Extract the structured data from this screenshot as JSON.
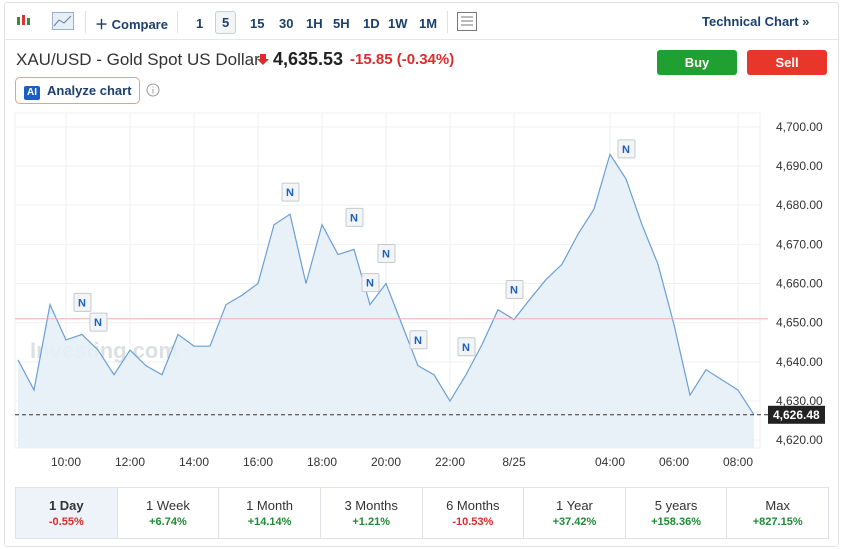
{
  "toolbar": {
    "compare": "Compare",
    "intervals": [
      "1",
      "5",
      "15",
      "30",
      "1H",
      "5H",
      "1D",
      "1W",
      "1M"
    ],
    "technical": "Technical Chart »"
  },
  "header": {
    "title": "XAU/USD - Gold Spot US Dollar",
    "price": "4,635.53",
    "change": "-15.85",
    "change_pct": "(-0.34%)",
    "buy": "Buy",
    "sell": "Sell",
    "ai": "AI",
    "analyze": "Analyze chart"
  },
  "chart_data": {
    "type": "line",
    "watermark": "Investing.com",
    "news_label": "N",
    "categories": [
      null,
      null,
      null,
      "10:00",
      null,
      null,
      null,
      "12:00",
      null,
      null,
      null,
      "14:00",
      null,
      null,
      null,
      "16:00",
      null,
      null,
      null,
      "18:00",
      null,
      null,
      null,
      "20:00",
      null,
      null,
      null,
      "22:00",
      null,
      null,
      null,
      "8/25",
      null,
      null,
      null,
      null,
      null,
      "04:00",
      null,
      null,
      null,
      "06:00",
      null,
      null,
      null,
      "08:00",
      null
    ],
    "series": [
      {
        "name": "XAU/USD",
        "color": "#6a9fd4",
        "values": [
          4640.5,
          4632.8,
          4654.6,
          4645.6,
          4647,
          4643,
          4636.7,
          4643,
          4639,
          4636.7,
          4647,
          4644,
          4644,
          4654.6,
          4657,
          4660,
          4675,
          4677.7,
          4660,
          4675,
          4667.4,
          4668.7,
          4654.6,
          4660,
          4649.5,
          4639,
          4636.7,
          4630,
          4636.7,
          4644.4,
          4653.3,
          4650.8,
          4656,
          4661,
          4664.9,
          4672.6,
          4679,
          4693,
          4686.7,
          4675,
          4664.9,
          4649.5,
          4631.5,
          4638,
          4635.4,
          4632.8,
          4626.5
        ]
      }
    ],
    "prev_close": 4651,
    "last": {
      "value": 4626.48,
      "label": "4,626.48"
    },
    "ylim": [
      4618,
      4702
    ],
    "yticks": [
      {
        "value": 4620,
        "label": "4,620.00"
      },
      {
        "value": 4630,
        "label": "4,630.00"
      },
      {
        "value": 4640,
        "label": "4,640.00"
      },
      {
        "value": 4650,
        "label": "4,650.00"
      },
      {
        "value": 4660,
        "label": "4,660.00"
      },
      {
        "value": 4670,
        "label": "4,670.00"
      },
      {
        "value": 4680,
        "label": "4,680.00"
      },
      {
        "value": 4690,
        "label": "4,690.00"
      },
      {
        "value": 4700,
        "label": "4,700.00"
      }
    ],
    "grid": true
  },
  "periods": [
    {
      "label": "1 Day",
      "change": "-0.55%"
    },
    {
      "label": "1 Week",
      "change": "+6.74%"
    },
    {
      "label": "1 Month",
      "change": "+14.14%"
    },
    {
      "label": "3 Months",
      "change": "+1.21%"
    },
    {
      "label": "6 Months",
      "change": "-10.53%"
    },
    {
      "label": "1 Year",
      "change": "+37.42%"
    },
    {
      "label": "5 years",
      "change": "+158.36%"
    },
    {
      "label": "Max",
      "change": "+827.15%"
    }
  ]
}
